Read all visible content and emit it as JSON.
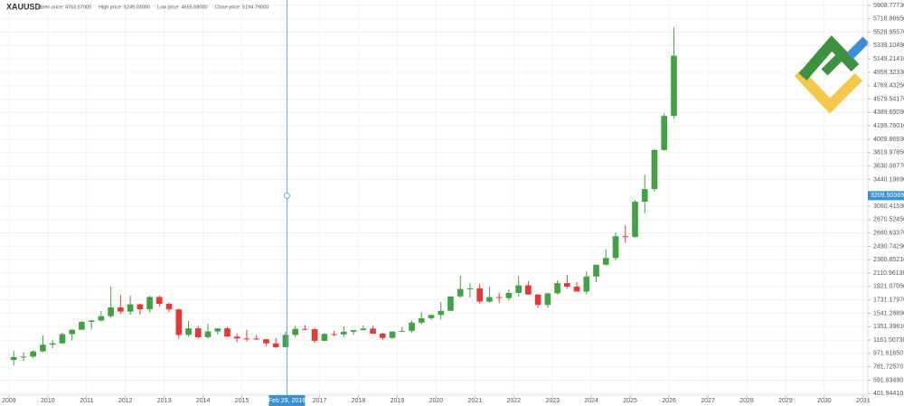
{
  "chart_data": {
    "type": "candlestick",
    "symbol": "XAUUSD",
    "header": [
      "Open price: 4763.67000",
      "High price: 5249.03000",
      "Low price: 4655.68000",
      "Close price: 5194.79000"
    ],
    "x": [
      2009.125,
      2009.375,
      2009.625,
      2009.875,
      2010.125,
      2010.375,
      2010.625,
      2010.875,
      2011.125,
      2011.375,
      2011.625,
      2011.875,
      2012.125,
      2012.375,
      2012.625,
      2012.875,
      2013.125,
      2013.375,
      2013.625,
      2013.875,
      2014.125,
      2014.375,
      2014.625,
      2014.875,
      2015.125,
      2015.375,
      2015.625,
      2015.875,
      2016.125,
      2016.375,
      2016.625,
      2016.875,
      2017.125,
      2017.375,
      2017.625,
      2017.875,
      2018.125,
      2018.375,
      2018.625,
      2018.875,
      2019.125,
      2019.375,
      2019.625,
      2019.875,
      2020.125,
      2020.375,
      2020.625,
      2020.875,
      2021.125,
      2021.375,
      2021.625,
      2021.875,
      2022.125,
      2022.375,
      2022.625,
      2022.875,
      2023.125,
      2023.375,
      2023.625,
      2023.875,
      2024.125,
      2024.375,
      2024.625,
      2024.875,
      2025.125,
      2025.375,
      2025.625,
      2025.875,
      2026.125
    ],
    "open": [
      880,
      920,
      927,
      1000,
      1096,
      1115,
      1245,
      1307,
      1420,
      1439,
      1500,
      1624,
      1565,
      1668,
      1598,
      1772,
      1675,
      1596,
      1234,
      1327,
      1202,
      1284,
      1327,
      1210,
      1184,
      1183,
      1172,
      1115,
      1061,
      1235,
      1320,
      1315,
      1151,
      1247,
      1242,
      1280,
      1302,
      1325,
      1252,
      1192,
      1282,
      1292,
      1409,
      1472,
      1517,
      1577,
      1781,
      1886,
      1895,
      1707,
      1770,
      1757,
      1829,
      1937,
      1807,
      1660,
      1824,
      1969,
      1919,
      1849,
      2063,
      2230,
      2326,
      2634,
      2625,
      3124,
      3303,
      3858,
      4340
    ],
    "high": [
      1005,
      990,
      1020,
      1226,
      1160,
      1265,
      1315,
      1430,
      1445,
      1577,
      1920,
      1800,
      1790,
      1680,
      1790,
      1795,
      1695,
      1605,
      1434,
      1362,
      1392,
      1332,
      1345,
      1255,
      1307,
      1232,
      1178,
      1191,
      1282,
      1362,
      1375,
      1337,
      1263,
      1296,
      1357,
      1298,
      1366,
      1365,
      1265,
      1287,
      1346,
      1438,
      1557,
      1524,
      1703,
      1765,
      2075,
      1966,
      1959,
      1916,
      1834,
      1877,
      2070,
      1998,
      1814,
      1833,
      2009,
      2082,
      1987,
      2135,
      2225,
      2450,
      2685,
      2790,
      3149,
      3500,
      3870,
      4381,
      5595
    ],
    "low": [
      800,
      860,
      905,
      990,
      1045,
      1110,
      1155,
      1310,
      1310,
      1420,
      1480,
      1530,
      1520,
      1525,
      1555,
      1635,
      1555,
      1180,
      1207,
      1180,
      1182,
      1240,
      1206,
      1132,
      1142,
      1162,
      1077,
      1046,
      1062,
      1200,
      1301,
      1123,
      1146,
      1214,
      1205,
      1236,
      1302,
      1245,
      1160,
      1180,
      1276,
      1266,
      1381,
      1445,
      1451,
      1567,
      1757,
      1764,
      1676,
      1690,
      1687,
      1721,
      1780,
      1805,
      1614,
      1616,
      1804,
      1893,
      1850,
      1810,
      1984,
      2220,
      2293,
      2537,
      2614,
      2957,
      3268,
      3850,
      4300
    ],
    "close": [
      920,
      927,
      1000,
      1096,
      1115,
      1245,
      1307,
      1420,
      1439,
      1500,
      1624,
      1565,
      1668,
      1598,
      1772,
      1675,
      1596,
      1234,
      1327,
      1202,
      1284,
      1327,
      1210,
      1184,
      1183,
      1172,
      1115,
      1061,
      1235,
      1320,
      1315,
      1151,
      1247,
      1242,
      1280,
      1302,
      1325,
      1252,
      1192,
      1282,
      1292,
      1409,
      1472,
      1517,
      1577,
      1781,
      1886,
      1895,
      1707,
      1770,
      1757,
      1829,
      1937,
      1807,
      1660,
      1824,
      1969,
      1919,
      1849,
      2063,
      2230,
      2326,
      2634,
      2625,
      3124,
      3303,
      3858,
      4340,
      5194.79
    ],
    "up_color": "#43a047",
    "down_color": "#e53935",
    "xlim": [
      2008.77,
      2031.12
    ],
    "xticks": [
      2009,
      2010,
      2011,
      2012,
      2013,
      2014,
      2015,
      2016,
      2017,
      2018,
      2019,
      2020,
      2021,
      2022,
      2023,
      2024,
      2025,
      2026,
      2027,
      2028,
      2029,
      2030,
      2031
    ],
    "ylim": [
      380,
      5985
    ],
    "yticks": [
      {
        "value": 401.9441,
        "label": "401.94410"
      },
      {
        "value": 591.8349,
        "label": "591.83490"
      },
      {
        "value": 781.7257,
        "label": "781.72570"
      },
      {
        "value": 971.6165,
        "label": "971.61650"
      },
      {
        "value": 1161.5073,
        "label": "1161.50730"
      },
      {
        "value": 1351.3981,
        "label": "1351.39810"
      },
      {
        "value": 1541.2889,
        "label": "1541.28890"
      },
      {
        "value": 1731.1797,
        "label": "1731.17970"
      },
      {
        "value": 1921.0705,
        "label": "1921.07050"
      },
      {
        "value": 2110.9613,
        "label": "2110.96130"
      },
      {
        "value": 2300.8521,
        "label": "2300.85210"
      },
      {
        "value": 2490.7429,
        "label": "2490.74290"
      },
      {
        "value": 2680.6337,
        "label": "2680.63370"
      },
      {
        "value": 2870.5245,
        "label": "2870.52450"
      },
      {
        "value": 3060.4153,
        "label": "3060.41530"
      },
      {
        "value": 3440.1969,
        "label": "3440.19690"
      },
      {
        "value": 3630.0877,
        "label": "3630.08770"
      },
      {
        "value": 3819.9785,
        "label": "3819.97850"
      },
      {
        "value": 4009.8693,
        "label": "4009.86930"
      },
      {
        "value": 4199.7601,
        "label": "4199.76010"
      },
      {
        "value": 4389.6509,
        "label": "4389.65090"
      },
      {
        "value": 4579.5417,
        "label": "4579.54170"
      },
      {
        "value": 4769.4325,
        "label": "4769.43250"
      },
      {
        "value": 4959.3233,
        "label": "4959.32330"
      },
      {
        "value": 5149.2141,
        "label": "5149.21410"
      },
      {
        "value": 5339.1049,
        "label": "5339.10490"
      },
      {
        "value": 5528.9557,
        "label": "5528.95570"
      },
      {
        "value": 5718.8665,
        "label": "5718.86650"
      },
      {
        "value": 5908.7773,
        "label": "5908.77730"
      }
    ],
    "grid": true,
    "crosshair": {
      "x": 2016.16,
      "label": "Feb 29, 2016",
      "y": 3209.50369,
      "color": "#5aaee0"
    }
  }
}
